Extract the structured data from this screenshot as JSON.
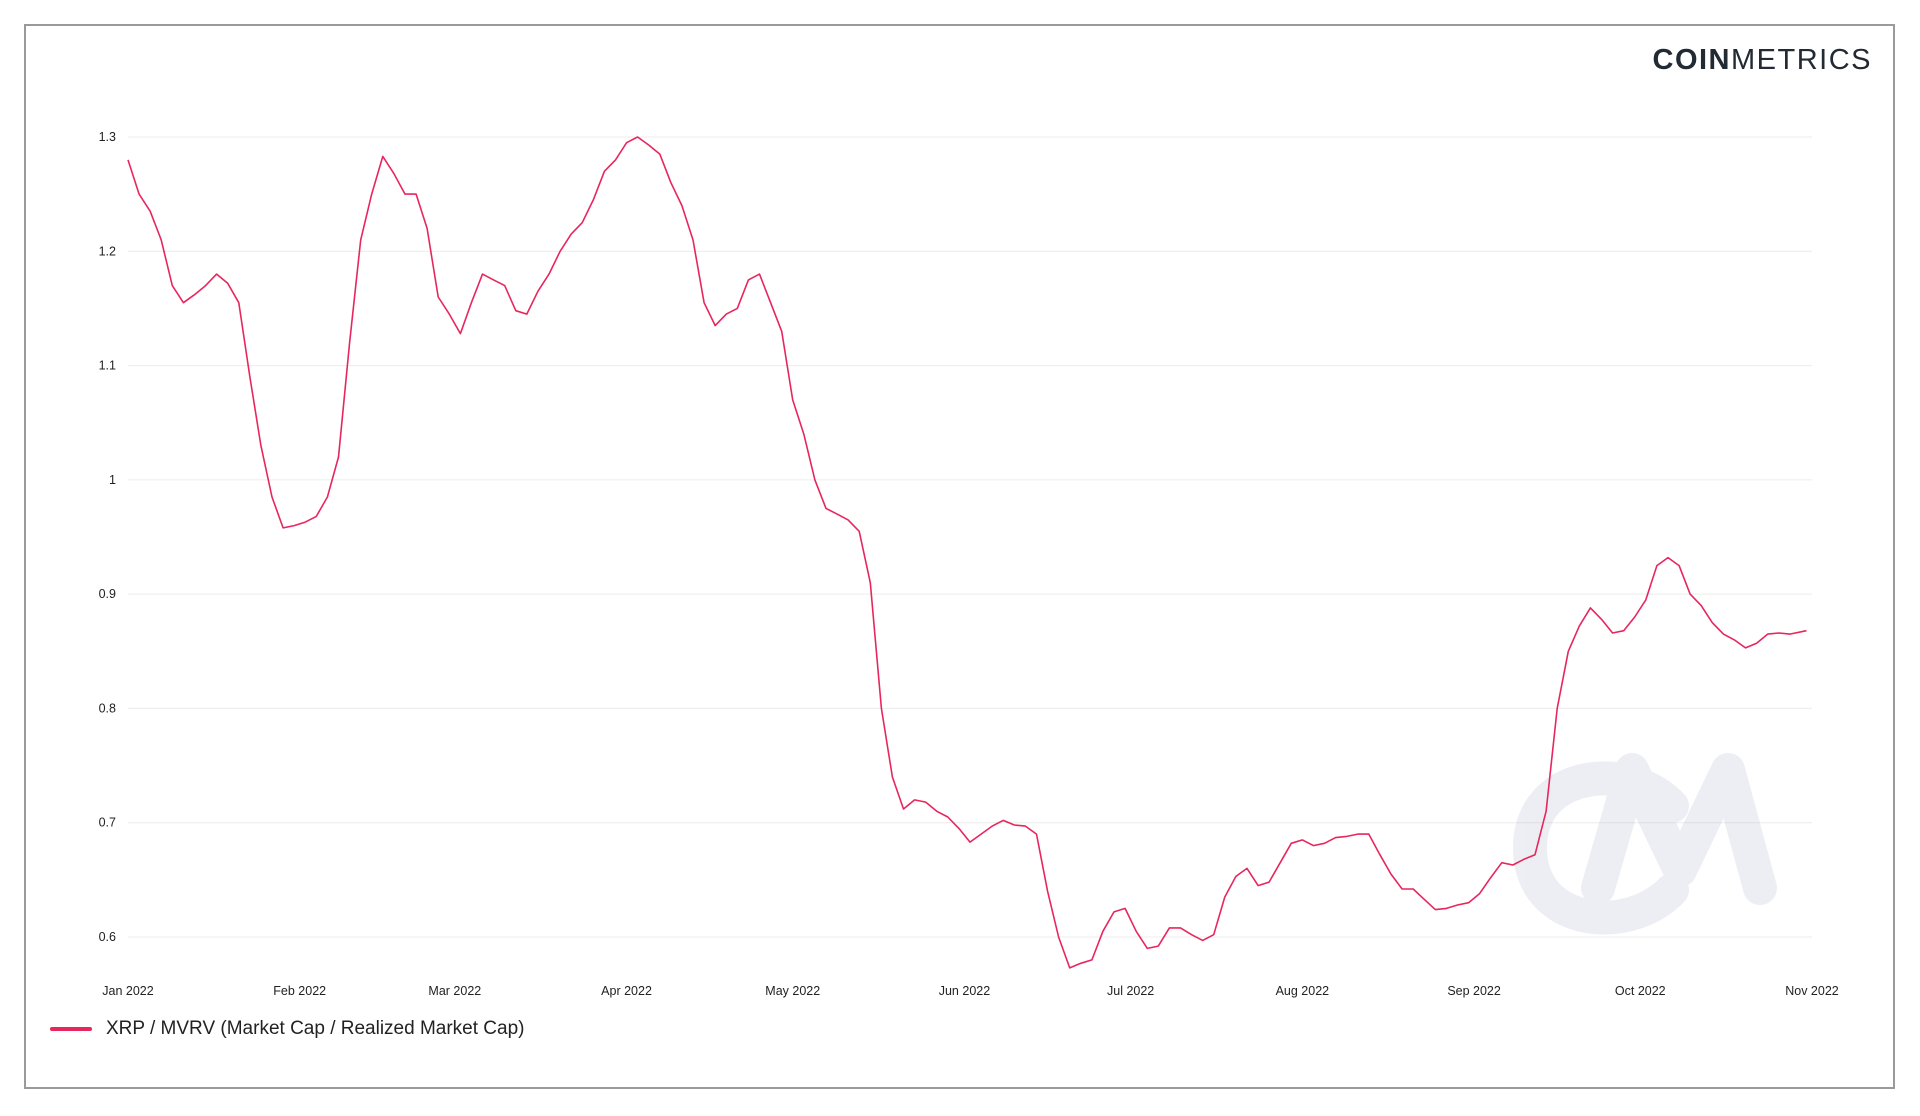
{
  "brand": {
    "bold": "COIN",
    "light": "METRICS"
  },
  "chart_data": {
    "type": "line",
    "title": "",
    "xlabel": "",
    "ylabel": "",
    "ylim": [
      0.555,
      1.32
    ],
    "y_ticks": [
      0.6,
      0.7,
      0.8,
      0.9,
      1,
      1.1,
      1.2,
      1.3
    ],
    "y_tick_labels": [
      "0.6",
      "0.7",
      "0.8",
      "0.9",
      "1",
      "1.1",
      "1.2",
      "1.3"
    ],
    "x_range": [
      "2022-01-01",
      "2022-11-01"
    ],
    "x_ticks": [
      "2022-01-01",
      "2022-02-01",
      "2022-03-01",
      "2022-04-01",
      "2022-05-01",
      "2022-06-01",
      "2022-07-01",
      "2022-08-01",
      "2022-09-01",
      "2022-10-01",
      "2022-11-01"
    ],
    "x_tick_labels": [
      "Jan 2022",
      "Feb 2022",
      "Mar 2022",
      "Apr 2022",
      "May 2022",
      "Jun 2022",
      "Jul 2022",
      "Aug 2022",
      "Sep 2022",
      "Oct 2022",
      "Nov 2022"
    ],
    "grid": {
      "horizontal": true,
      "vertical": false
    },
    "legend_position": "bottom-left",
    "series": [
      {
        "name": "XRP / MVRV (Market Cap / Realized Market Cap)",
        "color": "#e8265e",
        "points": [
          [
            "2022-01-01",
            1.28
          ],
          [
            "2022-01-03",
            1.25
          ],
          [
            "2022-01-05",
            1.235
          ],
          [
            "2022-01-07",
            1.21
          ],
          [
            "2022-01-09",
            1.17
          ],
          [
            "2022-01-11",
            1.155
          ],
          [
            "2022-01-13",
            1.162
          ],
          [
            "2022-01-15",
            1.17
          ],
          [
            "2022-01-17",
            1.18
          ],
          [
            "2022-01-19",
            1.172
          ],
          [
            "2022-01-21",
            1.155
          ],
          [
            "2022-01-23",
            1.09
          ],
          [
            "2022-01-25",
            1.03
          ],
          [
            "2022-01-27",
            0.985
          ],
          [
            "2022-01-29",
            0.958
          ],
          [
            "2022-01-31",
            0.96
          ],
          [
            "2022-02-02",
            0.963
          ],
          [
            "2022-02-04",
            0.968
          ],
          [
            "2022-02-06",
            0.985
          ],
          [
            "2022-02-08",
            1.02
          ],
          [
            "2022-02-10",
            1.12
          ],
          [
            "2022-02-12",
            1.21
          ],
          [
            "2022-02-14",
            1.25
          ],
          [
            "2022-02-16",
            1.283
          ],
          [
            "2022-02-18",
            1.268
          ],
          [
            "2022-02-20",
            1.25
          ],
          [
            "2022-02-22",
            1.25
          ],
          [
            "2022-02-24",
            1.22
          ],
          [
            "2022-02-26",
            1.16
          ],
          [
            "2022-02-28",
            1.145
          ],
          [
            "2022-03-02",
            1.128
          ],
          [
            "2022-03-04",
            1.155
          ],
          [
            "2022-03-06",
            1.18
          ],
          [
            "2022-03-08",
            1.175
          ],
          [
            "2022-03-10",
            1.17
          ],
          [
            "2022-03-12",
            1.148
          ],
          [
            "2022-03-14",
            1.145
          ],
          [
            "2022-03-16",
            1.165
          ],
          [
            "2022-03-18",
            1.18
          ],
          [
            "2022-03-20",
            1.2
          ],
          [
            "2022-03-22",
            1.215
          ],
          [
            "2022-03-24",
            1.225
          ],
          [
            "2022-03-26",
            1.245
          ],
          [
            "2022-03-28",
            1.27
          ],
          [
            "2022-03-30",
            1.28
          ],
          [
            "2022-04-01",
            1.295
          ],
          [
            "2022-04-03",
            1.3
          ],
          [
            "2022-04-05",
            1.293
          ],
          [
            "2022-04-07",
            1.285
          ],
          [
            "2022-04-09",
            1.26
          ],
          [
            "2022-04-11",
            1.24
          ],
          [
            "2022-04-13",
            1.21
          ],
          [
            "2022-04-15",
            1.155
          ],
          [
            "2022-04-17",
            1.135
          ],
          [
            "2022-04-19",
            1.145
          ],
          [
            "2022-04-21",
            1.15
          ],
          [
            "2022-04-23",
            1.175
          ],
          [
            "2022-04-25",
            1.18
          ],
          [
            "2022-04-27",
            1.155
          ],
          [
            "2022-04-29",
            1.13
          ],
          [
            "2022-05-01",
            1.07
          ],
          [
            "2022-05-03",
            1.04
          ],
          [
            "2022-05-05",
            1.0
          ],
          [
            "2022-05-07",
            0.975
          ],
          [
            "2022-05-09",
            0.97
          ],
          [
            "2022-05-11",
            0.965
          ],
          [
            "2022-05-13",
            0.955
          ],
          [
            "2022-05-15",
            0.91
          ],
          [
            "2022-05-17",
            0.8
          ],
          [
            "2022-05-19",
            0.74
          ],
          [
            "2022-05-21",
            0.712
          ],
          [
            "2022-05-23",
            0.72
          ],
          [
            "2022-05-25",
            0.718
          ],
          [
            "2022-05-27",
            0.71
          ],
          [
            "2022-05-29",
            0.705
          ],
          [
            "2022-05-31",
            0.695
          ],
          [
            "2022-06-02",
            0.683
          ],
          [
            "2022-06-04",
            0.69
          ],
          [
            "2022-06-06",
            0.697
          ],
          [
            "2022-06-08",
            0.702
          ],
          [
            "2022-06-10",
            0.698
          ],
          [
            "2022-06-12",
            0.697
          ],
          [
            "2022-06-14",
            0.69
          ],
          [
            "2022-06-16",
            0.64
          ],
          [
            "2022-06-18",
            0.6
          ],
          [
            "2022-06-20",
            0.573
          ],
          [
            "2022-06-22",
            0.577
          ],
          [
            "2022-06-24",
            0.58
          ],
          [
            "2022-06-26",
            0.605
          ],
          [
            "2022-06-28",
            0.622
          ],
          [
            "2022-06-30",
            0.625
          ],
          [
            "2022-07-02",
            0.605
          ],
          [
            "2022-07-04",
            0.59
          ],
          [
            "2022-07-06",
            0.592
          ],
          [
            "2022-07-08",
            0.608
          ],
          [
            "2022-07-10",
            0.608
          ],
          [
            "2022-07-12",
            0.602
          ],
          [
            "2022-07-14",
            0.597
          ],
          [
            "2022-07-16",
            0.602
          ],
          [
            "2022-07-18",
            0.635
          ],
          [
            "2022-07-20",
            0.653
          ],
          [
            "2022-07-22",
            0.66
          ],
          [
            "2022-07-24",
            0.645
          ],
          [
            "2022-07-26",
            0.648
          ],
          [
            "2022-07-28",
            0.665
          ],
          [
            "2022-07-30",
            0.682
          ],
          [
            "2022-08-01",
            0.685
          ],
          [
            "2022-08-03",
            0.68
          ],
          [
            "2022-08-05",
            0.682
          ],
          [
            "2022-08-07",
            0.687
          ],
          [
            "2022-08-09",
            0.688
          ],
          [
            "2022-08-11",
            0.69
          ],
          [
            "2022-08-13",
            0.69
          ],
          [
            "2022-08-15",
            0.672
          ],
          [
            "2022-08-17",
            0.655
          ],
          [
            "2022-08-19",
            0.642
          ],
          [
            "2022-08-21",
            0.642
          ],
          [
            "2022-08-23",
            0.633
          ],
          [
            "2022-08-25",
            0.624
          ],
          [
            "2022-08-27",
            0.625
          ],
          [
            "2022-08-29",
            0.628
          ],
          [
            "2022-08-31",
            0.63
          ],
          [
            "2022-09-02",
            0.638
          ],
          [
            "2022-09-04",
            0.652
          ],
          [
            "2022-09-06",
            0.665
          ],
          [
            "2022-09-08",
            0.663
          ],
          [
            "2022-09-10",
            0.668
          ],
          [
            "2022-09-12",
            0.672
          ],
          [
            "2022-09-14",
            0.71
          ],
          [
            "2022-09-16",
            0.8
          ],
          [
            "2022-09-18",
            0.85
          ],
          [
            "2022-09-20",
            0.872
          ],
          [
            "2022-09-22",
            0.888
          ],
          [
            "2022-09-24",
            0.878
          ],
          [
            "2022-09-26",
            0.866
          ],
          [
            "2022-09-28",
            0.868
          ],
          [
            "2022-09-30",
            0.88
          ],
          [
            "2022-10-02",
            0.895
          ],
          [
            "2022-10-04",
            0.925
          ],
          [
            "2022-10-06",
            0.932
          ],
          [
            "2022-10-08",
            0.925
          ],
          [
            "2022-10-10",
            0.9
          ],
          [
            "2022-10-12",
            0.89
          ],
          [
            "2022-10-14",
            0.875
          ],
          [
            "2022-10-16",
            0.865
          ],
          [
            "2022-10-18",
            0.86
          ],
          [
            "2022-10-20",
            0.853
          ],
          [
            "2022-10-22",
            0.857
          ],
          [
            "2022-10-24",
            0.865
          ],
          [
            "2022-10-26",
            0.866
          ],
          [
            "2022-10-28",
            0.865
          ],
          [
            "2022-10-31",
            0.868
          ]
        ]
      }
    ]
  }
}
